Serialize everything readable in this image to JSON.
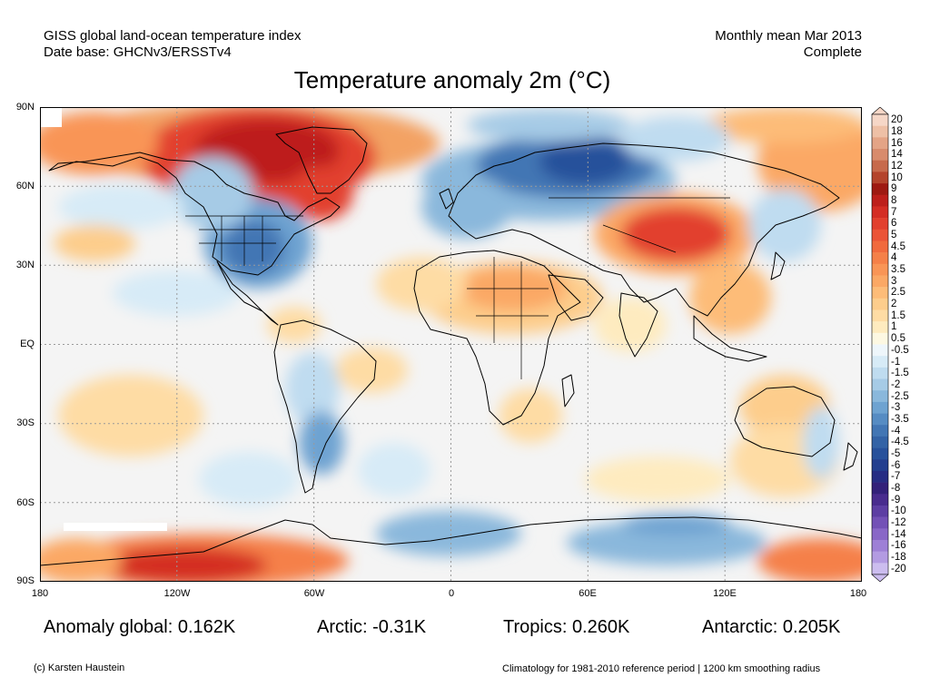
{
  "header": {
    "left_line1": "GISS global land-ocean temperature index",
    "left_line2": "Date base: GHCNv3/ERSSTv4",
    "right_line1": "Monthly mean Mar 2013",
    "right_line2": "Complete"
  },
  "title": "Temperature anomaly 2m (°C)",
  "map": {
    "lat_labels": [
      "90N",
      "60N",
      "30N",
      "EQ",
      "30S",
      "60S",
      "90S"
    ],
    "lon_labels": [
      "180",
      "120W",
      "60W",
      "0",
      "60E",
      "120E",
      "180"
    ]
  },
  "colorbar": {
    "labels": [
      "20",
      "18",
      "16",
      "14",
      "12",
      "10",
      "9",
      "8",
      "7",
      "6",
      "5",
      "4.5",
      "4",
      "3.5",
      "3",
      "2.5",
      "2",
      "1.5",
      "1",
      "0.5",
      "-0.5",
      "-1",
      "-1.5",
      "-2",
      "-2.5",
      "-3",
      "-3.5",
      "-4",
      "-4.5",
      "-5",
      "-6",
      "-7",
      "-8",
      "-9",
      "-10",
      "-12",
      "-14",
      "-16",
      "-18",
      "-20"
    ],
    "colors": [
      "#f6d7c7",
      "#eec0a6",
      "#e4a486",
      "#d88b6c",
      "#c76a4c",
      "#b4442c",
      "#9e1a12",
      "#bd1f1b",
      "#d42d24",
      "#e2402e",
      "#eb5437",
      "#f16a3d",
      "#f58048",
      "#f99556",
      "#fba865",
      "#fdbc78",
      "#fdcd8c",
      "#fedca4",
      "#feebbf",
      "#fdf8e2",
      "#eef6fb",
      "#d7ebf7",
      "#bfdcf0",
      "#a6cbe6",
      "#8ab8dc",
      "#6ea3d1",
      "#568cc3",
      "#4276b4",
      "#3363a6",
      "#27519b",
      "#233f8f",
      "#262d84",
      "#33217a",
      "#492c8e",
      "#5d3ea3",
      "#7351b6",
      "#8967c7",
      "#9e80d6",
      "#b39be2",
      "#ccbdef"
    ]
  },
  "stats": {
    "global": "Anomaly global: 0.162K",
    "arctic": "Arctic: -0.31K",
    "tropics": "Tropics: 0.260K",
    "antarctic": "Antarctic: 0.205K"
  },
  "footer": {
    "credit": "(c) Karsten Haustein",
    "note": "Climatology for 1981-2010 reference period | 1200 km smoothing radius"
  }
}
